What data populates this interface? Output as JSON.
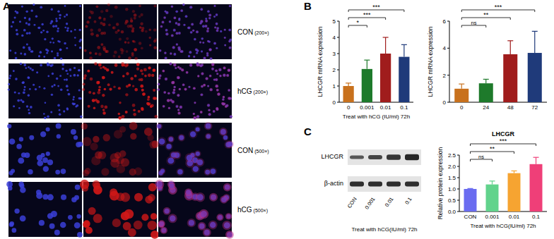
{
  "panels": [
    "A",
    "B",
    "C"
  ],
  "figure_a": {
    "rows": [
      {
        "group": "CON",
        "magnification": "(200×)"
      },
      {
        "group": "hCG",
        "magnification": "(200×)"
      },
      {
        "group": "CON",
        "magnification": "(500×)"
      },
      {
        "group": "hCG",
        "magnification": "(500×)"
      }
    ]
  },
  "blot": {
    "rows": [
      "LHCGR",
      "β-actin"
    ],
    "lanes": [
      "CON",
      "0.001",
      "0.01",
      "0.1"
    ],
    "xlabel": "Treat with hCG(IU/ml)  72h"
  },
  "chart_data": [
    {
      "type": "bar",
      "categories": [
        "0",
        "0.001",
        "0.01",
        "0.1"
      ],
      "values": [
        1.0,
        2.05,
        3.0,
        2.8
      ],
      "errors": [
        0.18,
        0.55,
        1.0,
        0.75
      ],
      "colors": [
        "#c8711d",
        "#1e7a2b",
        "#a01c1c",
        "#1f3a7a"
      ],
      "ylim": [
        0,
        5
      ],
      "yticks": [
        0,
        1,
        2,
        3,
        4,
        5
      ],
      "ylabel": "LHCGR mRNA expression",
      "xlabel": "Treat with hCG (IU/ml) 72h",
      "significance": [
        null,
        "*",
        "***",
        "***"
      ]
    },
    {
      "type": "bar",
      "categories": [
        "0",
        "24",
        "48",
        "72"
      ],
      "values": [
        1.0,
        1.4,
        3.55,
        3.65
      ],
      "errors": [
        0.35,
        0.3,
        1.0,
        1.6
      ],
      "colors": [
        "#c8711d",
        "#1e7a2b",
        "#a01c1c",
        "#1f3a7a"
      ],
      "ylim": [
        0,
        6
      ],
      "yticks": [
        0,
        2,
        4,
        6
      ],
      "ylabel": "LHCGR mRNA expression",
      "significance": [
        null,
        "ns",
        "**",
        "***"
      ]
    },
    {
      "type": "bar",
      "title": "LHCGR",
      "categories": [
        "CON",
        "0.001",
        "0.01",
        "0.1"
      ],
      "values": [
        1.0,
        1.2,
        1.7,
        2.1
      ],
      "errors": [
        0.02,
        0.15,
        0.1,
        0.3
      ],
      "colors": [
        "#6a6cf0",
        "#62d38c",
        "#f6a431",
        "#ef3f78"
      ],
      "ylim": [
        0,
        2.5
      ],
      "yticks": [
        {
          "value": 0,
          "label": "0.0"
        },
        {
          "value": 0.5,
          "label": "0.5"
        },
        {
          "value": 1,
          "label": "1.0"
        },
        {
          "value": 1.5,
          "label": "1.5"
        },
        {
          "value": 2,
          "label": "2.0"
        },
        {
          "value": 2.5,
          "label": "2.5"
        }
      ],
      "ylabel": "Relative protein expression",
      "xlabel": "Treat with hCG(IU/ml)  72h",
      "significance": [
        null,
        "ns",
        "**",
        "***"
      ]
    }
  ]
}
